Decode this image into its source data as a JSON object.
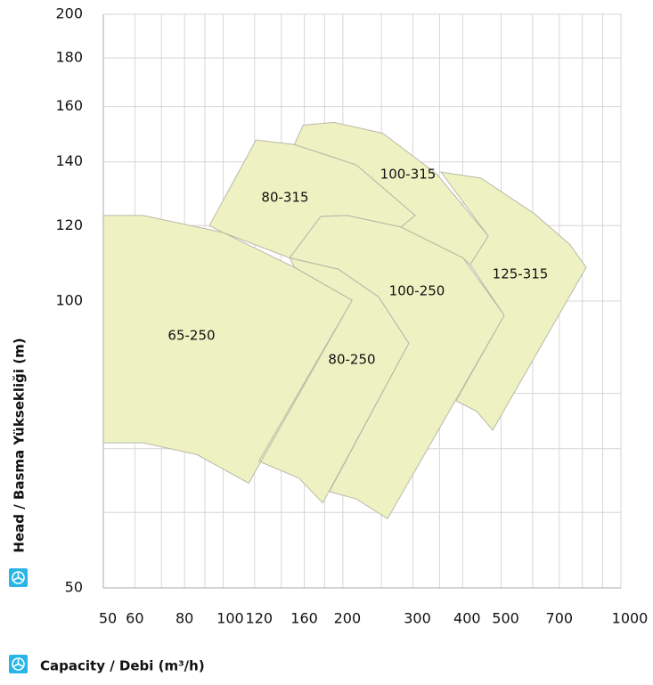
{
  "chart_data": {
    "type": "region",
    "ylabel": "Head / Basma Yüksekliği (m)",
    "xlabel": "Capacity / Debi (m³/h)",
    "xlog": true,
    "ylog": true,
    "grid": true,
    "xlim": [
      50,
      1000
    ],
    "ylim": [
      50,
      200
    ],
    "xticks": [
      50,
      60,
      80,
      100,
      120,
      160,
      200,
      300,
      400,
      500,
      700,
      1000
    ],
    "yticks": [
      50,
      100,
      120,
      140,
      160,
      180,
      200
    ],
    "x_minor_grid": [
      70,
      90,
      140,
      180,
      250,
      350,
      600,
      800,
      900
    ],
    "y_minor_grid": [
      60,
      70,
      80
    ],
    "color": "#eef2c2",
    "series": [
      {
        "name": "65-250",
        "x": [
          50,
          63,
          100,
          151,
          211,
          116,
          86,
          63,
          50
        ],
        "y": [
          123,
          123,
          118,
          108.5,
          100.2,
          64.4,
          69,
          71,
          71
        ]
      },
      {
        "name": "80-250",
        "x": [
          147,
          195,
          246,
          293,
          178,
          155,
          123,
          211,
          151
        ],
        "y": [
          111,
          108,
          101,
          90.3,
          61.4,
          65.2,
          67.9,
          100.2,
          108.5
        ]
      },
      {
        "name": "100-250",
        "x": [
          147,
          176,
          205,
          280,
          401,
          509,
          259,
          216,
          185,
          293,
          246,
          195
        ],
        "y": [
          111,
          122.7,
          123,
          119.6,
          111,
          96.6,
          59.1,
          62,
          63.1,
          90.3,
          101,
          108
        ]
      },
      {
        "name": "80-315",
        "x": [
          92.4,
          121,
          151,
          216,
          304,
          280,
          205,
          176,
          147,
          100
        ],
        "y": [
          120,
          147.6,
          146,
          139,
          123,
          119.6,
          123,
          122.7,
          111,
          118
        ]
      },
      {
        "name": "100-315",
        "x": [
          151,
          159,
          190,
          252,
          344,
          464,
          418,
          401,
          280,
          304,
          216
        ],
        "y": [
          146,
          153,
          154,
          150,
          136,
          117,
          109.2,
          111,
          119.6,
          123,
          139
        ]
      },
      {
        "name": "125-315",
        "x": [
          353,
          445,
          606,
          745,
          818,
          476,
          434,
          385,
          509,
          418,
          464
        ],
        "y": [
          136.6,
          134.6,
          123.5,
          114.6,
          108.5,
          73.2,
          76.6,
          78.6,
          96.6,
          109.2,
          117
        ]
      }
    ]
  }
}
